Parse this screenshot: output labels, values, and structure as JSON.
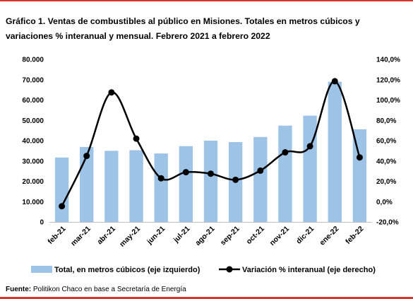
{
  "title": "Gráfico 1. Ventas de combustibles al público en Misiones. Totales en metros cúbicos y variaciones % interanual y mensual. Febrero 2021 a febrero 2022",
  "footer": {
    "label": "Fuente:",
    "text": " Politikon Chaco en base a Secretaría de Energía"
  },
  "colors": {
    "bars": "#9dc3e6",
    "line": "#000000",
    "accent_rule": "#d9342b"
  },
  "chart_data": {
    "type": "bar",
    "categories": [
      "feb-21",
      "mar-21",
      "abr-21",
      "may-21",
      "jun-21",
      "jul-21",
      "ago-21",
      "sep-21",
      "oct-21",
      "nov-21",
      "dic-21",
      "ene-22",
      "feb-22"
    ],
    "series": [
      {
        "name": "Total, en metros cúbicos (eje izquierdo)",
        "type": "bar",
        "axis": "left",
        "values": [
          31700,
          36900,
          35000,
          35300,
          33700,
          37300,
          40000,
          39300,
          41800,
          47400,
          52300,
          69000,
          45600
        ]
      },
      {
        "name": "Variación % interanual (eje derecho)",
        "type": "line",
        "axis": "right",
        "values": [
          -4.5,
          45,
          107.5,
          62,
          23,
          29,
          27.5,
          21.5,
          30.5,
          48.5,
          54.5,
          118.5,
          43.5
        ]
      }
    ],
    "y_left": {
      "min": 0,
      "max": 80000,
      "ticks": [
        "0",
        "10.000",
        "20.000",
        "30.000",
        "40.000",
        "50.000",
        "60.000",
        "70.000",
        "80.000"
      ]
    },
    "y_right": {
      "min": -20,
      "max": 140,
      "ticks": [
        "-20,0%",
        "0,0%",
        "20,0%",
        "40,0%",
        "60,0%",
        "80,0%",
        "100,0%",
        "120,0%",
        "140,0%"
      ]
    },
    "grid": false,
    "legend_position": "bottom"
  }
}
